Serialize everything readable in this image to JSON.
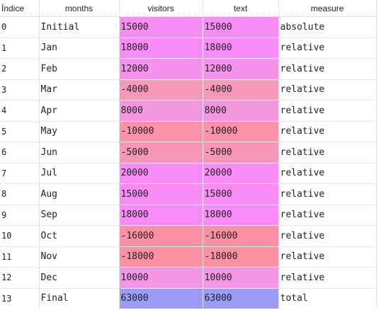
{
  "columns": [
    "Índice",
    "months",
    "visitors",
    "text",
    "measure"
  ],
  "colors": {
    "max_positive": "#fa8cfa",
    "positive": "#f78ef0",
    "mid_positive": "#f391dc",
    "small_positive": "#f597e0",
    "small_negative": "#f697ba",
    "negative": "#fb93a8",
    "total": "#9c9cf7"
  },
  "rows": [
    {
      "index": "0",
      "months": "Initial",
      "visitors": "15000",
      "text": "15000",
      "measure": "absolute",
      "color": "#fa8cf5"
    },
    {
      "index": "1",
      "months": "Jan",
      "visitors": "18000",
      "text": "18000",
      "measure": "relative",
      "color": "#fa8cfa"
    },
    {
      "index": "2",
      "months": "Feb",
      "visitors": "12000",
      "text": "12000",
      "measure": "relative",
      "color": "#f592ec"
    },
    {
      "index": "3",
      "months": "Mar",
      "visitors": "-4000",
      "text": "-4000",
      "measure": "relative",
      "color": "#f799bb"
    },
    {
      "index": "4",
      "months": "Apr",
      "visitors": "8000",
      "text": "8000",
      "measure": "relative",
      "color": "#f597e0"
    },
    {
      "index": "5",
      "months": "May",
      "visitors": "-10000",
      "text": "-10000",
      "measure": "relative",
      "color": "#fb93a8"
    },
    {
      "index": "6",
      "months": "Jun",
      "visitors": "-5000",
      "text": "-5000",
      "measure": "relative",
      "color": "#f797b8"
    },
    {
      "index": "7",
      "months": "Jul",
      "visitors": "20000",
      "text": "20000",
      "measure": "relative",
      "color": "#fa8cfa"
    },
    {
      "index": "8",
      "months": "Aug",
      "visitors": "15000",
      "text": "15000",
      "measure": "relative",
      "color": "#fa8cf5"
    },
    {
      "index": "9",
      "months": "Sep",
      "visitors": "18000",
      "text": "18000",
      "measure": "relative",
      "color": "#fa8cfa"
    },
    {
      "index": "10",
      "months": "Oct",
      "visitors": "-16000",
      "text": "-16000",
      "measure": "relative",
      "color": "#fb90a4"
    },
    {
      "index": "11",
      "months": "Nov",
      "visitors": "-18000",
      "text": "-18000",
      "measure": "relative",
      "color": "#fb90a2"
    },
    {
      "index": "12",
      "months": "Dec",
      "visitors": "10000",
      "text": "10000",
      "measure": "relative",
      "color": "#f597e4"
    },
    {
      "index": "13",
      "months": "Final",
      "visitors": "63000",
      "text": "63000",
      "measure": "total",
      "color": "#9c9cf7"
    }
  ]
}
